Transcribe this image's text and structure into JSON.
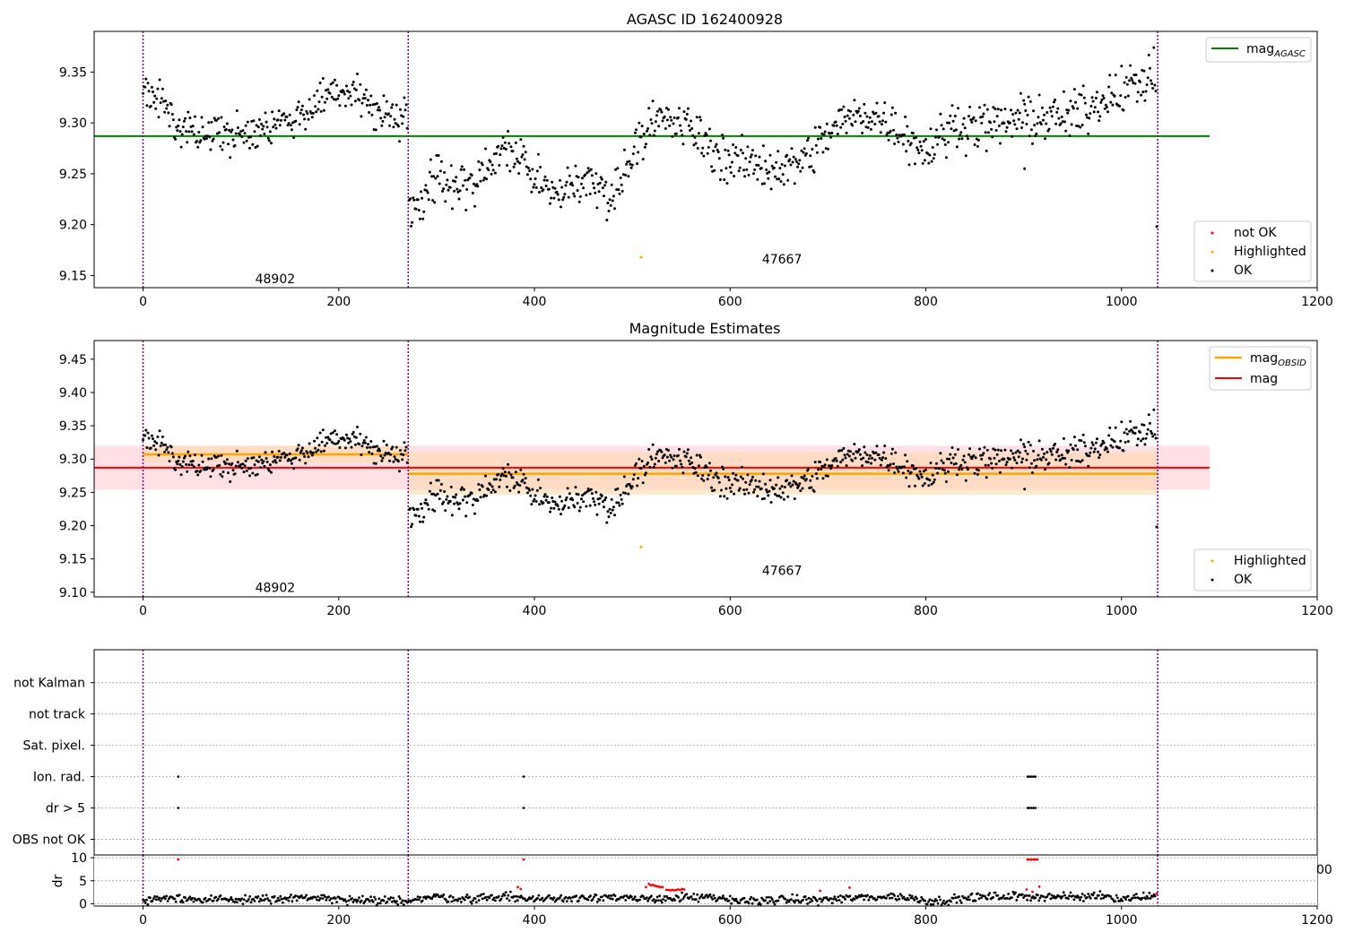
{
  "colors": {
    "ok": "#000000",
    "highlighted": "#ffa500",
    "not_ok": "#ff0000",
    "agasc_line": "#008000",
    "obsid_line": "#ffa500",
    "mag_line": "#ff0000",
    "obs_boundary": "#800080",
    "mag_band": "#ff9aa8",
    "obsid_band": "#ffd8a8"
  },
  "chart_data": [
    {
      "type": "scatter",
      "title": "AGASC ID 162400928",
      "xlim": [
        -50,
        1200
      ],
      "ylim": [
        9.138,
        9.39
      ],
      "xticks": [
        0,
        200,
        400,
        600,
        800,
        1000,
        1200
      ],
      "yticks": [
        9.15,
        9.2,
        9.25,
        9.3,
        9.35
      ],
      "ytick_labels": [
        "9.15",
        "9.20",
        "9.25",
        "9.30",
        "9.35"
      ],
      "obs_boundaries": [
        0,
        271,
        1037
      ],
      "obs_labels": [
        {
          "text": "48902",
          "x": 135,
          "y": 9.147
        },
        {
          "text": "47667",
          "x": 653,
          "y": 9.166
        }
      ],
      "hlines": [
        {
          "name": "mag_AGASC",
          "value": 9.287,
          "x": [
            -50,
            1090
          ],
          "color": "agasc_line"
        }
      ],
      "legends": [
        {
          "position": "upper-right",
          "entries": [
            {
              "label": "mag",
              "sub": "AGASC",
              "kind": "line",
              "color": "agasc_line"
            }
          ]
        },
        {
          "position": "lower-right",
          "entries": [
            {
              "label": "not OK",
              "kind": "point",
              "color": "not_ok"
            },
            {
              "label": "Highlighted",
              "kind": "point",
              "color": "highlighted"
            },
            {
              "label": "OK",
              "kind": "point",
              "color": "ok"
            }
          ]
        }
      ],
      "series": [
        {
          "name": "OK",
          "trend": [
            [
              0,
              9.33
            ],
            [
              20,
              9.318
            ],
            [
              40,
              9.298
            ],
            [
              60,
              9.29
            ],
            [
              100,
              9.287
            ],
            [
              130,
              9.294
            ],
            [
              160,
              9.31
            ],
            [
              185,
              9.322
            ],
            [
              215,
              9.332
            ],
            [
              240,
              9.31
            ],
            [
              270,
              9.302
            ]
          ],
          "range": [
            0,
            270
          ],
          "step": 1,
          "noise": 0.009,
          "seed": 1
        },
        {
          "name": "OK",
          "trend": [
            [
              272,
              9.218
            ],
            [
              285,
              9.225
            ],
            [
              300,
              9.25
            ],
            [
              320,
              9.235
            ],
            [
              340,
              9.24
            ],
            [
              360,
              9.27
            ],
            [
              385,
              9.268
            ],
            [
              400,
              9.247
            ],
            [
              420,
              9.226
            ],
            [
              440,
              9.242
            ],
            [
              460,
              9.24
            ],
            [
              480,
              9.228
            ],
            [
              495,
              9.258
            ],
            [
              505,
              9.286
            ],
            [
              530,
              9.303
            ],
            [
              560,
              9.295
            ],
            [
              580,
              9.275
            ],
            [
              600,
              9.262
            ],
            [
              620,
              9.26
            ],
            [
              660,
              9.255
            ],
            [
              685,
              9.272
            ],
            [
              710,
              9.299
            ],
            [
              740,
              9.31
            ],
            [
              770,
              9.296
            ],
            [
              800,
              9.272
            ],
            [
              830,
              9.299
            ],
            [
              870,
              9.297
            ],
            [
              900,
              9.305
            ],
            [
              940,
              9.305
            ],
            [
              960,
              9.31
            ],
            [
              990,
              9.33
            ],
            [
              1010,
              9.336
            ],
            [
              1033,
              9.345
            ]
          ],
          "range": [
            272,
            1035
          ],
          "step": 1,
          "noise": 0.011,
          "seed": 2
        },
        {
          "name": "OK outliers",
          "points": [
            [
              901,
              9.255
            ],
            [
              1036,
              9.198
            ]
          ]
        },
        {
          "name": "Highlighted",
          "points": [
            [
              509,
              9.168
            ]
          ]
        }
      ]
    },
    {
      "type": "scatter",
      "title": "Magnitude Estimates",
      "xlim": [
        -50,
        1200
      ],
      "ylim": [
        9.093,
        9.478
      ],
      "xticks": [
        0,
        200,
        400,
        600,
        800,
        1000,
        1200
      ],
      "yticks": [
        9.1,
        9.15,
        9.2,
        9.25,
        9.3,
        9.35,
        9.4,
        9.45
      ],
      "ytick_labels": [
        "9.10",
        "9.15",
        "9.20",
        "9.25",
        "9.30",
        "9.35",
        "9.40",
        "9.45"
      ],
      "obs_boundaries": [
        0,
        271,
        1037
      ],
      "obs_labels": [
        {
          "text": "48902",
          "x": 135,
          "y": 9.107
        },
        {
          "text": "47667",
          "x": 653,
          "y": 9.133
        }
      ],
      "bands": [
        {
          "x": [
            -50,
            1090
          ],
          "y": [
            9.254,
            9.32
          ],
          "color": "mag_band",
          "opacity": 0.3
        },
        {
          "x": [
            0,
            271
          ],
          "y": [
            9.295,
            9.32
          ],
          "color": "obsid_band",
          "opacity": 0.55
        },
        {
          "x": [
            271,
            1037
          ],
          "y": [
            9.246,
            9.31
          ],
          "color": "obsid_band",
          "opacity": 0.55
        }
      ],
      "hlines": [
        {
          "name": "mag",
          "value": 9.287,
          "x": [
            -50,
            1090
          ],
          "color": "mag_line"
        },
        {
          "name": "mag_OBSID 48902",
          "value": 9.307,
          "x": [
            0,
            271
          ],
          "color": "obsid_line"
        },
        {
          "name": "mag_OBSID 47667",
          "value": 9.278,
          "x": [
            271,
            1037
          ],
          "color": "obsid_line"
        }
      ],
      "legends": [
        {
          "position": "upper-right",
          "entries": [
            {
              "label": "mag",
              "sub": "OBSID",
              "kind": "line",
              "color": "obsid_line"
            },
            {
              "label": "mag",
              "kind": "line",
              "color": "mag_line"
            }
          ]
        },
        {
          "position": "lower-right",
          "entries": [
            {
              "label": "Highlighted",
              "kind": "point",
              "color": "highlighted"
            },
            {
              "label": "OK",
              "kind": "point",
              "color": "ok"
            }
          ]
        }
      ],
      "series": [
        {
          "name": "OK",
          "trend": [
            [
              0,
              9.33
            ],
            [
              20,
              9.318
            ],
            [
              40,
              9.298
            ],
            [
              60,
              9.29
            ],
            [
              100,
              9.287
            ],
            [
              130,
              9.294
            ],
            [
              160,
              9.31
            ],
            [
              185,
              9.322
            ],
            [
              215,
              9.332
            ],
            [
              240,
              9.31
            ],
            [
              270,
              9.302
            ]
          ],
          "range": [
            0,
            270
          ],
          "step": 1,
          "noise": 0.009,
          "seed": 1
        },
        {
          "name": "OK",
          "trend": [
            [
              272,
              9.218
            ],
            [
              285,
              9.225
            ],
            [
              300,
              9.25
            ],
            [
              320,
              9.235
            ],
            [
              340,
              9.24
            ],
            [
              360,
              9.27
            ],
            [
              385,
              9.268
            ],
            [
              400,
              9.247
            ],
            [
              420,
              9.226
            ],
            [
              440,
              9.242
            ],
            [
              460,
              9.24
            ],
            [
              480,
              9.228
            ],
            [
              495,
              9.258
            ],
            [
              505,
              9.286
            ],
            [
              530,
              9.303
            ],
            [
              560,
              9.295
            ],
            [
              580,
              9.275
            ],
            [
              600,
              9.262
            ],
            [
              620,
              9.26
            ],
            [
              660,
              9.255
            ],
            [
              685,
              9.272
            ],
            [
              710,
              9.299
            ],
            [
              740,
              9.31
            ],
            [
              770,
              9.296
            ],
            [
              800,
              9.272
            ],
            [
              830,
              9.299
            ],
            [
              870,
              9.297
            ],
            [
              900,
              9.305
            ],
            [
              940,
              9.305
            ],
            [
              960,
              9.31
            ],
            [
              990,
              9.33
            ],
            [
              1010,
              9.336
            ],
            [
              1033,
              9.345
            ]
          ],
          "range": [
            272,
            1035
          ],
          "step": 1,
          "noise": 0.011,
          "seed": 2
        },
        {
          "name": "OK outliers",
          "points": [
            [
              901,
              9.255
            ],
            [
              1036,
              9.198
            ]
          ]
        },
        {
          "name": "Highlighted",
          "points": [
            [
              509,
              9.168
            ]
          ]
        }
      ]
    },
    {
      "type": "scatter",
      "title": "",
      "xlim": [
        -50,
        1200
      ],
      "ylim": [
        -0.5,
        6.05
      ],
      "categories": [
        "OBS not OK",
        "dr > 5",
        "Ion. rad.",
        "Sat. pixel.",
        "not track",
        "not Kalman"
      ],
      "flags": [
        {
          "category": "dr > 5",
          "x": [
            36,
            389,
            904,
            906,
            908,
            910,
            912
          ]
        },
        {
          "category": "Ion. rad.",
          "x": [
            36,
            389,
            904,
            906,
            908,
            910,
            912
          ]
        }
      ],
      "obs_boundaries": [
        0,
        271,
        1037
      ],
      "hidden_ticklabel_fragment": "00"
    },
    {
      "type": "scatter",
      "title": "",
      "ylabel": "dr",
      "xlim": [
        -50,
        1200
      ],
      "ylim": [
        -0.5,
        10.6
      ],
      "xticks": [
        0,
        200,
        400,
        600,
        800,
        1000,
        1200
      ],
      "yticks": [
        0,
        5,
        10
      ],
      "ytick_labels": [
        "0",
        "5",
        "10"
      ],
      "obs_boundaries": [
        0,
        271,
        1037
      ],
      "series": [
        {
          "name": "OK",
          "trend": [
            [
              0,
              0.7
            ],
            [
              30,
              1.2
            ],
            [
              60,
              0.9
            ],
            [
              100,
              0.9
            ],
            [
              140,
              1.0
            ],
            [
              170,
              1.4
            ],
            [
              200,
              0.8
            ],
            [
              240,
              0.5
            ],
            [
              270,
              0.8
            ],
            [
              300,
              1.5
            ],
            [
              330,
              1.0
            ],
            [
              370,
              1.6
            ],
            [
              400,
              1.0
            ],
            [
              430,
              1.2
            ],
            [
              470,
              1.6
            ],
            [
              500,
              0.9
            ],
            [
              530,
              1.2
            ],
            [
              570,
              1.4
            ],
            [
              610,
              0.6
            ],
            [
              650,
              0.9
            ],
            [
              690,
              0.8
            ],
            [
              730,
              1.3
            ],
            [
              770,
              1.6
            ],
            [
              810,
              0.5
            ],
            [
              850,
              1.4
            ],
            [
              880,
              1.6
            ],
            [
              920,
              1.6
            ],
            [
              960,
              1.4
            ],
            [
              980,
              2.0
            ],
            [
              1000,
              1.0
            ],
            [
              1030,
              1.8
            ]
          ],
          "range": [
            0,
            1035
          ],
          "step": 1.2,
          "noise": 0.45,
          "seed": 3
        },
        {
          "name": "not OK",
          "points": [
            [
              36,
              9.6
            ],
            [
              389,
              9.6
            ],
            [
              904,
              9.6
            ],
            [
              906,
              9.6
            ],
            [
              908,
              9.6
            ],
            [
              910,
              9.6
            ],
            [
              912,
              9.6
            ],
            [
              914,
              9.6
            ],
            [
              383,
              3.6
            ],
            [
              386,
              3.2
            ],
            [
              514,
              3.6
            ],
            [
              517,
              4.3
            ],
            [
              519,
              4.0
            ],
            [
              521,
              4.1
            ],
            [
              523,
              3.9
            ],
            [
              525,
              3.8
            ],
            [
              527,
              3.7
            ],
            [
              529,
              3.6
            ],
            [
              531,
              3.6
            ],
            [
              535,
              3.0
            ],
            [
              537,
              3.0
            ],
            [
              539,
              2.9
            ],
            [
              541,
              3.0
            ],
            [
              543,
              2.9
            ],
            [
              545,
              3.0
            ],
            [
              547,
              3.1
            ],
            [
              549,
              3.0
            ],
            [
              551,
              3.2
            ],
            [
              553,
              3.1
            ],
            [
              692,
              2.8
            ],
            [
              722,
              3.5
            ],
            [
              903,
              3.1
            ],
            [
              909,
              2.6
            ],
            [
              916,
              3.7
            ],
            [
              1036,
              2.2
            ]
          ]
        }
      ]
    }
  ]
}
